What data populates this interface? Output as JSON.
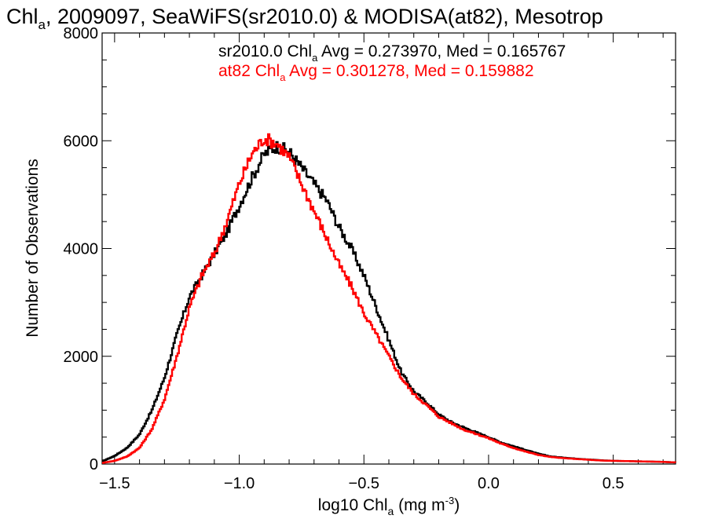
{
  "chart_data": {
    "type": "line",
    "title_parts": [
      "Chl",
      "a",
      ", 2009097, SeaWiFS(sr2010.0) & MODISA(at82), Mesotrop"
    ],
    "xlabel_parts": [
      "log10 Chl",
      "a",
      " (mg m",
      "-3",
      ")"
    ],
    "ylabel": "Number of Observations",
    "xlim": [
      -1.55,
      0.75
    ],
    "ylim": [
      0,
      8000
    ],
    "x_ticks": [
      {
        "value": -1.5,
        "label": "−1.5"
      },
      {
        "value": -1.0,
        "label": "−1.0"
      },
      {
        "value": -0.5,
        "label": "−0.5"
      },
      {
        "value": 0.0,
        "label": "0.0"
      },
      {
        "value": 0.5,
        "label": "0.5"
      }
    ],
    "y_ticks": [
      {
        "value": 0,
        "label": "0"
      },
      {
        "value": 2000,
        "label": "2000"
      },
      {
        "value": 4000,
        "label": "4000"
      },
      {
        "value": 6000,
        "label": "6000"
      },
      {
        "value": 8000,
        "label": "8000"
      }
    ],
    "annotations": [
      {
        "parts": [
          "sr2010.0 Chl",
          "a",
          " Avg = 0.273970, Med = 0.165767"
        ],
        "color": "#000000"
      },
      {
        "parts": [
          "at82 Chl",
          "a",
          " Avg = 0.301278, Med = 0.159882"
        ],
        "color": "#ff0000"
      }
    ],
    "series": [
      {
        "color": "#000000",
        "x": [
          -1.55,
          -1.5,
          -1.45,
          -1.4,
          -1.35,
          -1.3,
          -1.25,
          -1.2,
          -1.15,
          -1.1,
          -1.05,
          -1.0,
          -0.95,
          -0.9,
          -0.85,
          -0.8,
          -0.75,
          -0.7,
          -0.65,
          -0.6,
          -0.55,
          -0.5,
          -0.45,
          -0.4,
          -0.35,
          -0.3,
          -0.25,
          -0.2,
          -0.15,
          -0.1,
          -0.05,
          0.0,
          0.05,
          0.1,
          0.15,
          0.2,
          0.25,
          0.3,
          0.35,
          0.4,
          0.45,
          0.5,
          0.55,
          0.6,
          0.65,
          0.7,
          0.75
        ],
        "y": [
          50,
          150,
          300,
          550,
          1000,
          1600,
          2400,
          3100,
          3500,
          3900,
          4300,
          4800,
          5300,
          5750,
          5900,
          5800,
          5500,
          5200,
          4900,
          4400,
          4000,
          3500,
          2900,
          2300,
          1700,
          1350,
          1150,
          920,
          780,
          680,
          590,
          500,
          400,
          330,
          260,
          190,
          140,
          120,
          100,
          85,
          70,
          60,
          55,
          50,
          45,
          40,
          30
        ]
      },
      {
        "color": "#ff0000",
        "x": [
          -1.55,
          -1.5,
          -1.45,
          -1.4,
          -1.35,
          -1.3,
          -1.25,
          -1.2,
          -1.15,
          -1.1,
          -1.05,
          -1.0,
          -0.95,
          -0.9,
          -0.85,
          -0.8,
          -0.75,
          -0.7,
          -0.65,
          -0.6,
          -0.55,
          -0.5,
          -0.45,
          -0.4,
          -0.35,
          -0.3,
          -0.25,
          -0.2,
          -0.15,
          -0.1,
          -0.05,
          0.0,
          0.05,
          0.1,
          0.15,
          0.2,
          0.25,
          0.3,
          0.35,
          0.4,
          0.45,
          0.5,
          0.55,
          0.6,
          0.65,
          0.7,
          0.75
        ],
        "y": [
          20,
          60,
          140,
          300,
          650,
          1200,
          2000,
          2900,
          3500,
          3900,
          4500,
          5200,
          5750,
          6050,
          5950,
          5700,
          5200,
          4700,
          4200,
          3700,
          3300,
          2800,
          2400,
          2000,
          1600,
          1300,
          1100,
          880,
          760,
          640,
          560,
          480,
          380,
          300,
          230,
          170,
          130,
          110,
          95,
          80,
          65,
          60,
          55,
          50,
          45,
          40,
          30
        ]
      }
    ]
  }
}
